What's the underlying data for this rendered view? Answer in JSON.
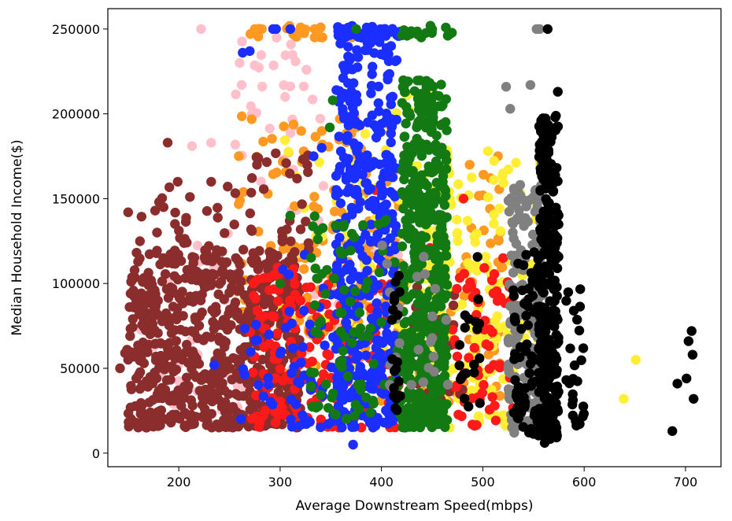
{
  "chart_data": {
    "type": "scatter",
    "title": "",
    "xlabel": "Average Downstream Speed(mbps)",
    "ylabel": "Median Household Income($)",
    "xlim": [
      130,
      735
    ],
    "ylim": [
      -8000,
      262000
    ],
    "xticks": [
      200,
      300,
      400,
      500,
      600,
      700
    ],
    "yticks": [
      0,
      50000,
      100000,
      150000,
      200000,
      250000
    ],
    "grid": false,
    "legend": "none",
    "marker": "circle",
    "series": [
      {
        "color": "#ffc0cb",
        "clusters": [
          {
            "x": [
              160,
              300
            ],
            "y": [
              20000,
              130000
            ],
            "n": 40
          },
          {
            "x": [
              255,
              340
            ],
            "y": [
              160000,
              250000
            ],
            "n": 30
          },
          {
            "x": [
              300,
              420
            ],
            "y": [
              40000,
              160000
            ],
            "n": 30
          }
        ],
        "points": [
          [
            222,
            250000
          ],
          [
            260,
            230000
          ],
          [
            262,
            217000
          ],
          [
            232,
            183000
          ],
          [
            213,
            181000
          ],
          [
            305,
            210000
          ],
          [
            326,
            226000
          ],
          [
            338,
            137000
          ],
          [
            343,
            78000
          ],
          [
            350,
            60000
          ]
        ]
      },
      {
        "color": "#ff9922",
        "clusters": [
          {
            "x": [
              255,
              420
            ],
            "y": [
              70000,
              200000
            ],
            "n": 140
          },
          {
            "x": [
              270,
              390
            ],
            "y": [
              245000,
              252000
            ],
            "n": 20
          },
          {
            "x": [
              300,
              480
            ],
            "y": [
              30000,
              110000
            ],
            "n": 40
          },
          {
            "x": [
              478,
              520
            ],
            "y": [
              30000,
              170000
            ],
            "n": 40
          }
        ],
        "points": [
          [
            275,
            250000
          ],
          [
            282,
            250000
          ],
          [
            334,
            250000
          ],
          [
            402,
            250000
          ],
          [
            487,
            170000
          ],
          [
            500,
            152000
          ],
          [
            515,
            175000
          ]
        ]
      },
      {
        "color": "#ffee33",
        "clusters": [
          {
            "x": [
              300,
              440
            ],
            "y": [
              50000,
              200000
            ],
            "n": 50
          },
          {
            "x": [
              440,
              560
            ],
            "y": [
              15000,
              180000
            ],
            "n": 170
          },
          {
            "x": [
              410,
              470
            ],
            "y": [
              40000,
              220000
            ],
            "n": 40
          }
        ],
        "points": [
          [
            639,
            32000
          ],
          [
            651,
            55000
          ],
          [
            505,
            178000
          ],
          [
            520,
            165000
          ],
          [
            434,
            212000
          ]
        ]
      },
      {
        "color": "#8b2d2d",
        "clusters": [
          {
            "x": [
              150,
              320
            ],
            "y": [
              15000,
              120000
            ],
            "n": 700
          },
          {
            "x": [
              160,
              260
            ],
            "y": [
              100000,
              160000
            ],
            "n": 40
          },
          {
            "x": [
              270,
              330
            ],
            "y": [
              120000,
              180000
            ],
            "n": 30
          },
          {
            "x": [
              420,
              480
            ],
            "y": [
              30000,
              110000
            ],
            "n": 30
          }
        ],
        "points": [
          [
            142,
            50000
          ],
          [
            147,
            59000
          ],
          [
            149,
            61000
          ],
          [
            150,
            142000
          ],
          [
            153,
            101000
          ],
          [
            185,
            145000
          ],
          [
            189,
            183000
          ],
          [
            199,
            160000
          ],
          [
            211,
            151000
          ],
          [
            232,
            160000
          ]
        ]
      },
      {
        "color": "#ff1a1a",
        "clusters": [
          {
            "x": [
              270,
              420
            ],
            "y": [
              15000,
              110000
            ],
            "n": 200
          },
          {
            "x": [
              470,
              530
            ],
            "y": [
              15000,
              110000
            ],
            "n": 60
          }
        ],
        "points": [
          [
            408,
            163000
          ],
          [
            394,
            155000
          ],
          [
            481,
            150000
          ],
          [
            448,
            121000
          ],
          [
            520,
            115000
          ]
        ]
      },
      {
        "color": "#1a2fff",
        "clusters": [
          {
            "x": [
              355,
              415
            ],
            "y": [
              15000,
              250000
            ],
            "n": 450
          },
          {
            "x": [
              300,
              360
            ],
            "y": [
              15000,
              120000
            ],
            "n": 50
          },
          {
            "x": [
              260,
              300
            ],
            "y": [
              20000,
              80000
            ],
            "n": 15
          },
          {
            "x": [
              355,
              420
            ],
            "y": [
              245000,
              252000
            ],
            "n": 40
          }
        ],
        "points": [
          [
            235,
            52000
          ],
          [
            270,
            237000
          ],
          [
            263,
            236000
          ],
          [
            293,
            250000
          ],
          [
            310,
            250000
          ],
          [
            296,
            250000
          ],
          [
            341,
            180000
          ],
          [
            333,
            175000
          ],
          [
            372,
            5000
          ]
        ]
      },
      {
        "color": "#137a13",
        "clusters": [
          {
            "x": [
              420,
              465
            ],
            "y": [
              15000,
              220000
            ],
            "n": 500
          },
          {
            "x": [
              330,
              420
            ],
            "y": [
              20000,
              140000
            ],
            "n": 90
          },
          {
            "x": [
              420,
              470
            ],
            "y": [
              245000,
              252000
            ],
            "n": 20
          }
        ],
        "points": [
          [
            352,
            208000
          ],
          [
            349,
            192000
          ],
          [
            375,
            250000
          ],
          [
            310,
            140000
          ],
          [
            300,
            100000
          ]
        ]
      },
      {
        "color": "#808080",
        "clusters": [
          {
            "x": [
              525,
              560
            ],
            "y": [
              15000,
              160000
            ],
            "n": 200
          },
          {
            "x": [
              400,
              470
            ],
            "y": [
              40000,
              130000
            ],
            "n": 25
          }
        ],
        "points": [
          [
            523,
            216000
          ],
          [
            527,
            203000
          ],
          [
            547,
            217000
          ],
          [
            553,
            250000
          ],
          [
            556,
            250000
          ],
          [
            558,
            171000
          ],
          [
            531,
            12000
          ]
        ]
      },
      {
        "color": "#000000",
        "clusters": [
          {
            "x": [
              555,
              575
            ],
            "y": [
              8000,
              200000
            ],
            "n": 300
          },
          {
            "x": [
              530,
              560
            ],
            "y": [
              10000,
              120000
            ],
            "n": 80
          },
          {
            "x": [
              410,
              420
            ],
            "y": [
              25000,
              120000
            ],
            "n": 20
          },
          {
            "x": [
              470,
              500
            ],
            "y": [
              25000,
              120000
            ],
            "n": 20
          },
          {
            "x": [
              580,
              600
            ],
            "y": [
              15000,
              100000
            ],
            "n": 25
          }
        ],
        "points": [
          [
            564,
            250000
          ],
          [
            687,
            13000
          ],
          [
            692,
            41000
          ],
          [
            701,
            44000
          ],
          [
            703,
            66000
          ],
          [
            706,
            72000
          ],
          [
            707,
            58000
          ],
          [
            708,
            32000
          ],
          [
            574,
            213000
          ],
          [
            563,
            194000
          ],
          [
            567,
            186000
          ],
          [
            561,
            6000
          ]
        ]
      }
    ]
  }
}
